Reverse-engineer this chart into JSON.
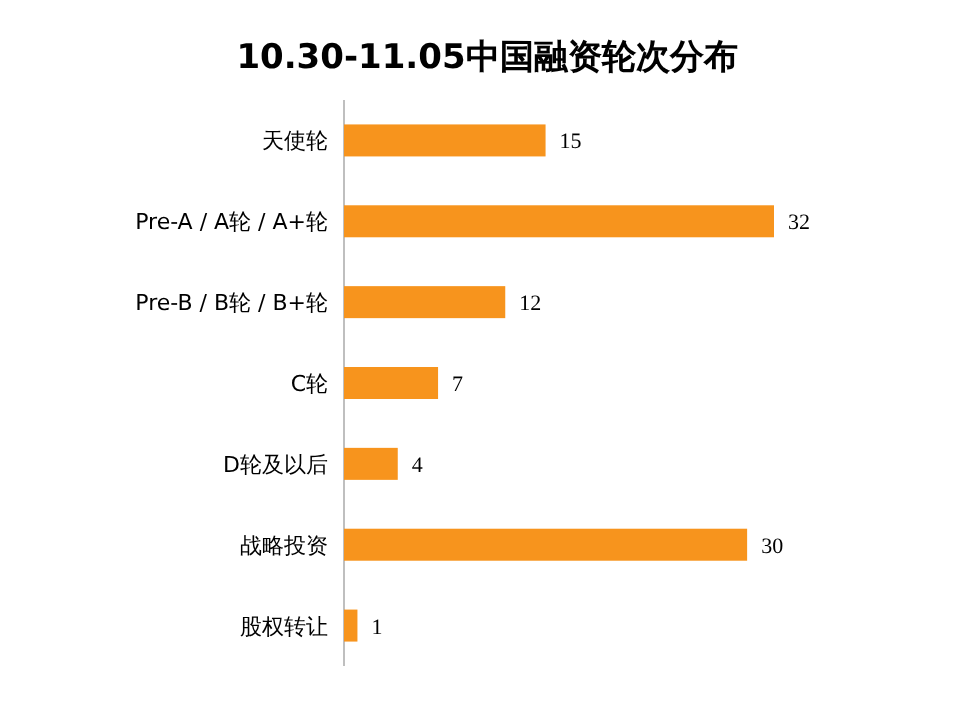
{
  "chart_data": {
    "type": "bar",
    "orientation": "horizontal",
    "title": "10.30-11.05中国融资轮次分布",
    "categories": [
      "天使轮",
      "Pre-A / A轮 / A+轮",
      "Pre-B / B轮 / B+轮",
      "C轮",
      "D轮及以后",
      "战略投资",
      "股权转让"
    ],
    "values": [
      15,
      32,
      12,
      7,
      4,
      30,
      1
    ],
    "color": "#f7941d",
    "data_labels": true
  }
}
